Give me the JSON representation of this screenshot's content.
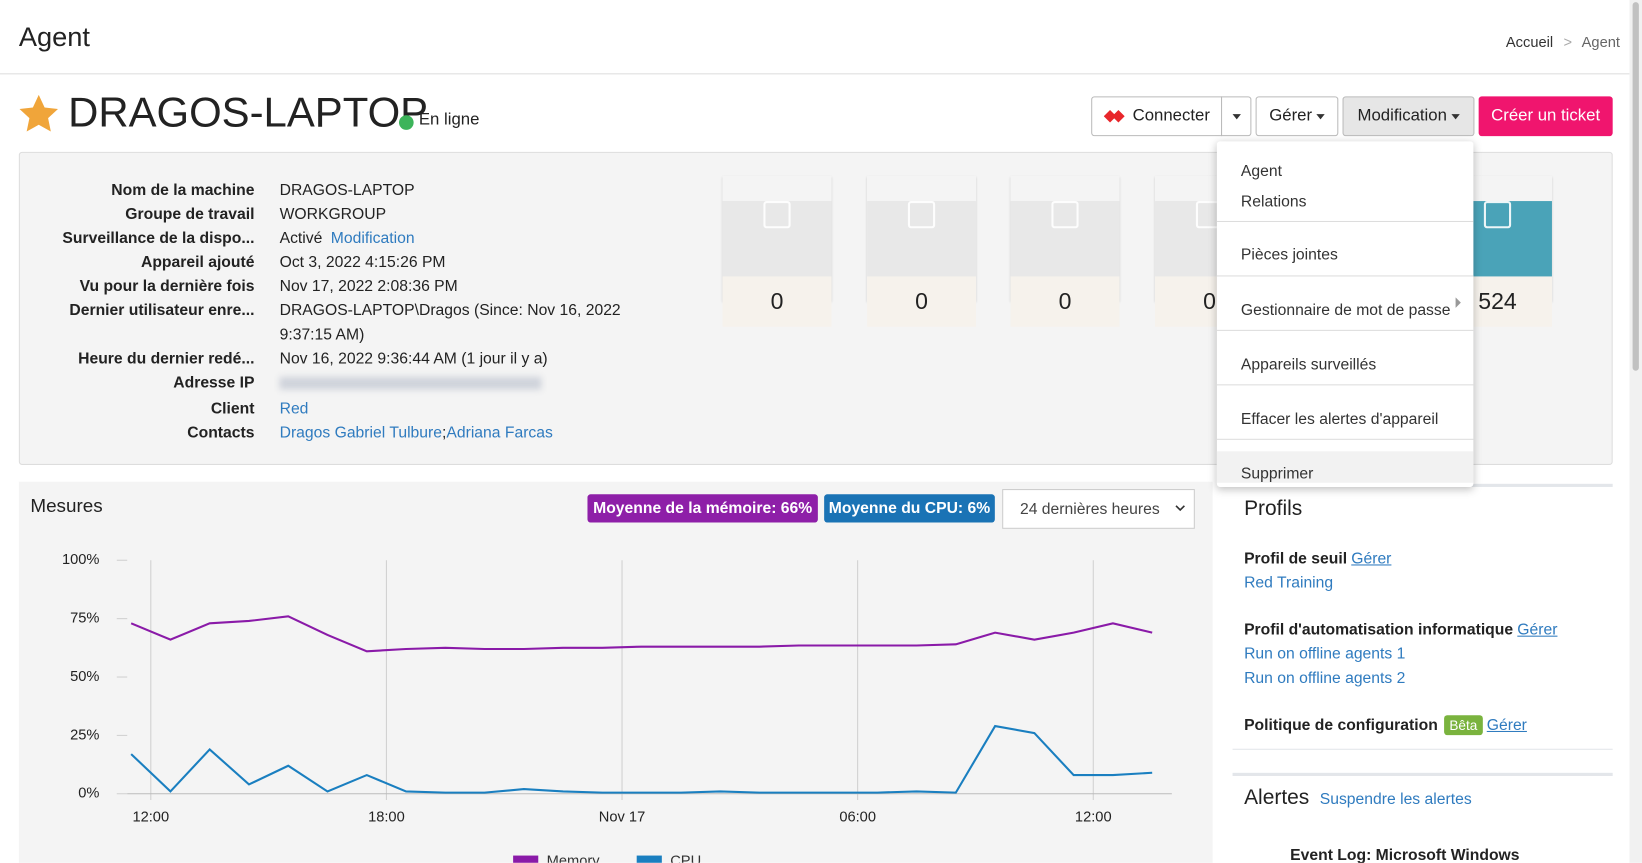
{
  "header": {
    "title": "Agent",
    "breadcrumb": [
      "Accueil",
      "Agent"
    ],
    "separator": ">"
  },
  "device": {
    "name": "DRAGOS-LAPTOP",
    "status": "En ligne"
  },
  "buttons": {
    "connect": "Connecter",
    "manage": "Gérer",
    "edit": "Modification",
    "ticket": "Créer un ticket"
  },
  "menu": [
    "Agent",
    "Relations",
    "Pièces jointes",
    "Gestionnaire de mot de passe",
    "Appareils surveillés",
    "Effacer les alertes d'appareil",
    "Supprimer"
  ],
  "info": [
    {
      "label": "Nom de la machine",
      "value": "DRAGOS-LAPTOP"
    },
    {
      "label": "Groupe de travail",
      "value": "WORKGROUP"
    },
    {
      "label": "Surveillance de la dispo...",
      "value": "Activé",
      "link": "Modification"
    },
    {
      "label": "Appareil ajouté",
      "value": "Oct 3, 2022 4:15:26 PM"
    },
    {
      "label": "Vu pour la dernière fois",
      "value": "Nov 17, 2022 2:08:36 PM"
    },
    {
      "label": "Dernier utilisateur enre...",
      "value": "DRAGOS-LAPTOP\\Dragos (Since: Nov 16, 2022 9:37:15 AM)"
    },
    {
      "label": "Heure du dernier redé...",
      "value": "Nov 16, 2022 9:36:44 AM (1 jour il y a)"
    },
    {
      "label": "Adresse IP"
    },
    {
      "label": "Client",
      "link": "Red"
    },
    {
      "label": "Contacts",
      "links": [
        "Dragos Gabriel Tulbure",
        "Adriana Farcas"
      ],
      "separator": ";"
    }
  ],
  "tiles": [
    0,
    0,
    0,
    0,
    524
  ],
  "metrics": {
    "title": "Mesures",
    "memory_badge": "Moyenne de la mémoire: 66%",
    "cpu_badge": "Moyenne du CPU: 6%",
    "range": "24 dernières heures"
  },
  "chart_data": {
    "type": "line",
    "x": [
      -0.5,
      0.5,
      1.5,
      2.5,
      3.5,
      4.5,
      5.5,
      6.5,
      7.5,
      8.5,
      9.5,
      10.5,
      11.5,
      12.5,
      13.5,
      14.5,
      15.5,
      16.5,
      17.5,
      18.5,
      19.5,
      20.5,
      21.5,
      22.5,
      23.5,
      24.5,
      25.5
    ],
    "series": [
      {
        "name": "Memory",
        "color": "#8a1aa8",
        "values": [
          73,
          66,
          73,
          74,
          76,
          68,
          61,
          62,
          62.5,
          62,
          62,
          62.5,
          62.5,
          63,
          63,
          63,
          63,
          63.5,
          63.5,
          63.5,
          63.5,
          64,
          69,
          66,
          69,
          73,
          69
        ]
      },
      {
        "name": "CPU",
        "color": "#1a7fc0",
        "values": [
          17,
          1,
          19,
          4,
          12,
          1,
          8,
          1,
          0.5,
          0.5,
          2,
          1,
          0.5,
          0.5,
          0.5,
          1,
          0.5,
          0.5,
          0.5,
          0.5,
          1,
          0.5,
          29,
          26,
          8,
          8,
          9
        ]
      }
    ],
    "xlim": [
      -0.6,
      26
    ],
    "xticks": [
      {
        "value": 0,
        "label": "12:00"
      },
      {
        "value": 6,
        "label": "18:00"
      },
      {
        "value": 12,
        "label": "Nov 17"
      },
      {
        "value": 18,
        "label": "06:00"
      },
      {
        "value": 24,
        "label": "12:00"
      }
    ],
    "ylim": [
      0,
      100
    ],
    "yticks": [
      {
        "value": 0,
        "label": "0%"
      },
      {
        "value": 25,
        "label": "25%"
      },
      {
        "value": 50,
        "label": "50%"
      },
      {
        "value": 75,
        "label": "75%"
      },
      {
        "value": 100,
        "label": "100%"
      }
    ],
    "grid": true
  },
  "profiles": {
    "title": "Profils",
    "sections": [
      {
        "title": "Profil de seuil",
        "action": "Gérer",
        "items": [
          "Red Training"
        ]
      },
      {
        "title": "Profil d'automatisation informatique",
        "action": "Gérer",
        "items": [
          "Run on offline agents 1",
          "Run on offline agents 2"
        ]
      },
      {
        "title": "Politique de configuration",
        "badge": "Bêta",
        "action": "Gérer"
      }
    ]
  },
  "alerts": {
    "title": "Alertes",
    "action": "Suspendre les alertes",
    "item": "Event Log: Microsoft Windows"
  }
}
